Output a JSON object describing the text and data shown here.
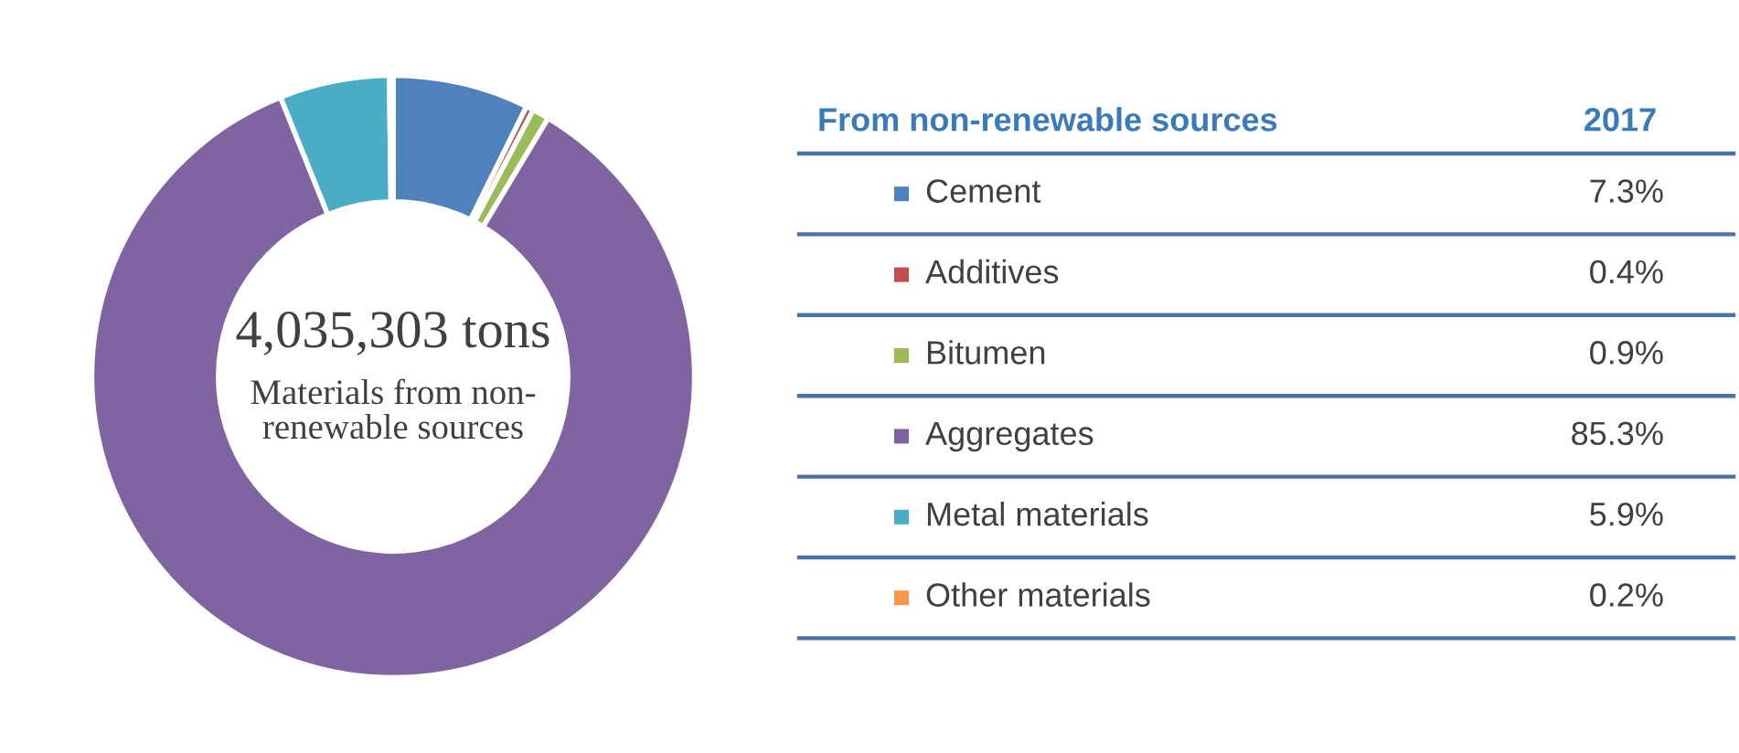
{
  "chart_data": {
    "type": "donut",
    "legend_title": "From non-renewable sources",
    "categories": [
      "Cement",
      "Additives",
      "Bitumen",
      "Aggregates",
      "Metal materials",
      "Other materials"
    ],
    "values": [
      7.3,
      0.4,
      0.9,
      85.3,
      5.9,
      0.2
    ],
    "value_labels": [
      "7.3%",
      "0.4%",
      "0.9%",
      "85.3%",
      "5.9%",
      "0.2%"
    ],
    "colors": [
      "#4f81bd",
      "#c0504d",
      "#9bbb59",
      "#8064a2",
      "#4bacc6",
      "#f79646"
    ],
    "legend": "right",
    "annotations": [
      "4,035,303 tons",
      "Materials from non-\nrenewable sources",
      "2017"
    ]
  }
}
